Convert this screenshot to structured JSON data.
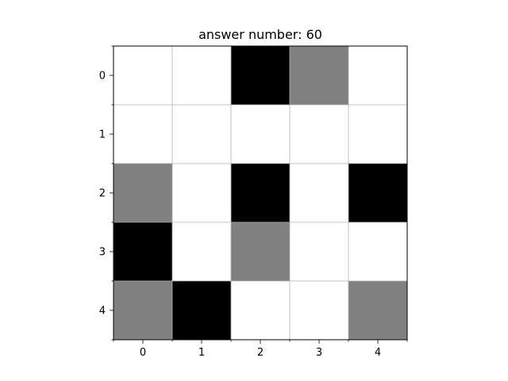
{
  "title": "answer number: 60",
  "chart_data": {
    "type": "heatmap",
    "title": "answer number: 60",
    "xlabel": "",
    "ylabel": "",
    "x_ticks": [
      "0",
      "1",
      "2",
      "3",
      "4"
    ],
    "y_ticks": [
      "0",
      "1",
      "2",
      "3",
      "4"
    ],
    "grid": true,
    "colormap": {
      "0": "#ffffff",
      "1": "#808080",
      "2": "#000000"
    },
    "cells": [
      [
        0,
        0,
        2,
        1,
        0
      ],
      [
        0,
        0,
        0,
        0,
        0
      ],
      [
        1,
        0,
        2,
        0,
        2
      ],
      [
        2,
        0,
        1,
        0,
        0
      ],
      [
        1,
        2,
        0,
        0,
        1
      ]
    ]
  },
  "colors": {
    "grid_line": "#b0b0b0",
    "axis": "#000000",
    "background": "#ffffff"
  }
}
